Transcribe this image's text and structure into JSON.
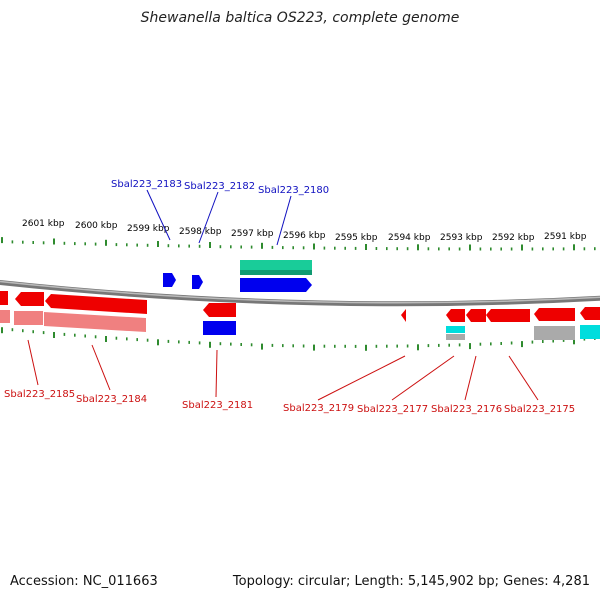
{
  "title": "Shewanella baltica OS223, complete genome",
  "footer": {
    "accession": "Accession: NC_011663",
    "info": "Topology: circular; Length: 5,145,902 bp; Genes: 4,281"
  },
  "colors": {
    "tick": "#2e8b2e",
    "backbone": "#888888",
    "forward_gene": "#0000ee",
    "reverse_gene": "#ee0000",
    "forward_rna": "#19cc99",
    "reverse_light": "#f08080",
    "reverse_rna": "#00dddd",
    "pseudo": "#aaaaaa",
    "label_top": "#1010c0",
    "label_bottom": "#cc1010"
  },
  "scale": {
    "unit": "kbp",
    "labels": [
      "2601 kbp",
      "2600 kbp",
      "2599 kbp",
      "2598 kbp",
      "2597 kbp",
      "2596 kbp",
      "2595 kbp",
      "2594 kbp",
      "2593 kbp",
      "2592 kbp",
      "2591 kbp"
    ]
  },
  "top_genes": {
    "labels": [
      "Sbal223_2183",
      "Sbal223_2182",
      "Sbal223_2180"
    ]
  },
  "bottom_genes": {
    "labels": [
      "Sbal223_2185",
      "Sbal223_2184",
      "Sbal223_2181",
      "Sbal223_2179",
      "Sbal223_2177",
      "Sbal223_2176",
      "Sbal223_2175"
    ]
  }
}
